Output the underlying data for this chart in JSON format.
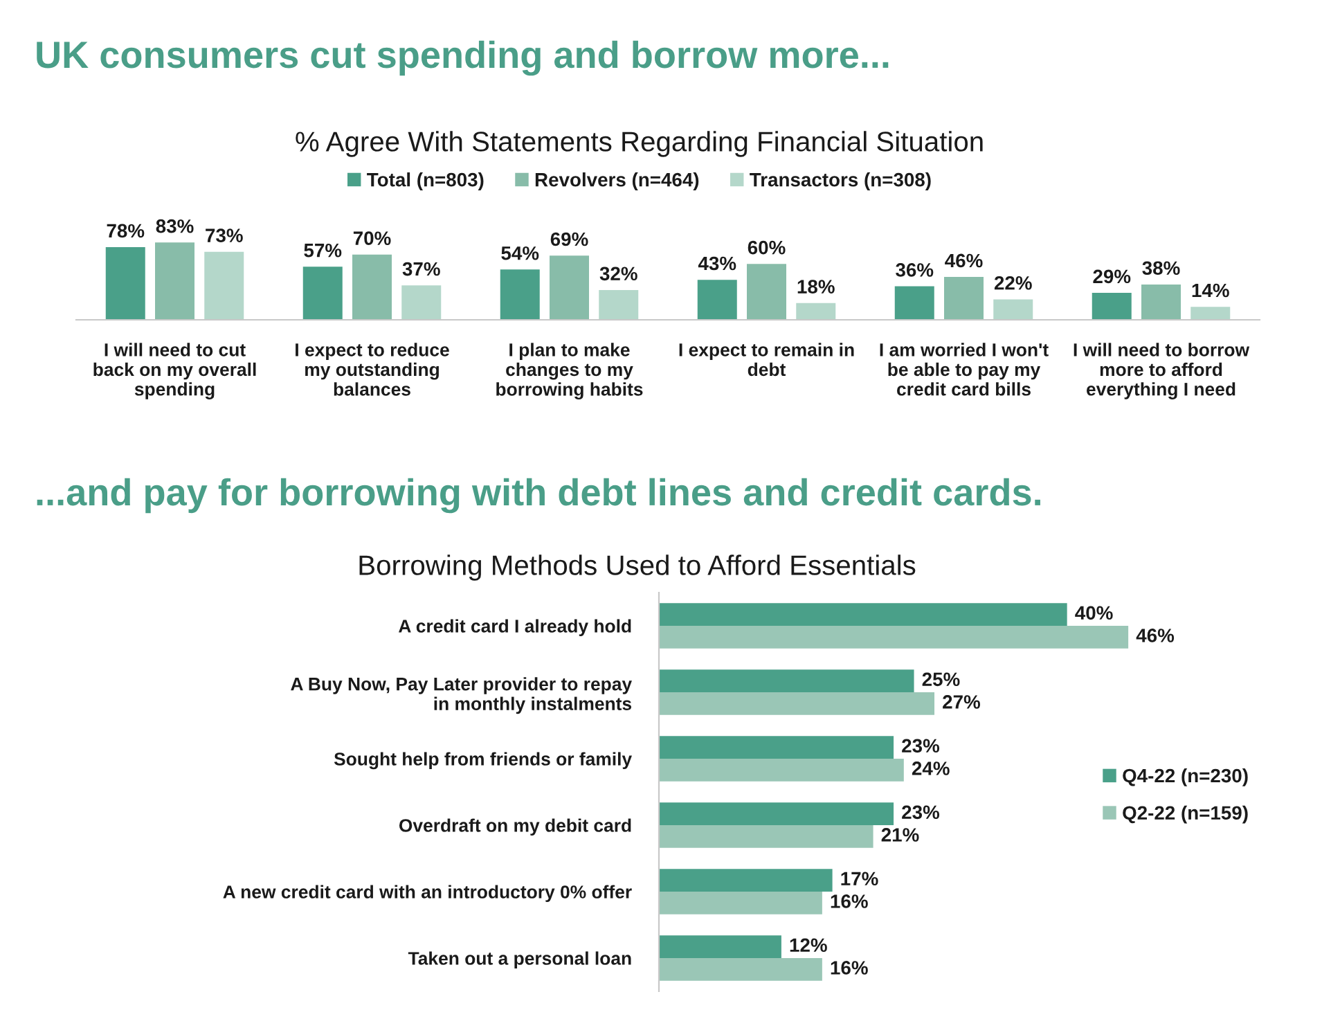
{
  "chart_data": [
    {
      "type": "bar",
      "title": "UK consumers cut spending and borrow more...",
      "subtitle": "% Agree With Statements Regarding Financial Situation",
      "categories": [
        "I will need to cut\nback on my overall\nspending",
        "I expect to reduce\nmy outstanding\nbalances",
        "I plan to make\nchanges to my\nborrowing habits",
        "I expect to remain in\ndebt",
        "I am worried I won't\nbe able to pay my\ncredit card bills",
        "I will need to borrow\nmore to afford\neverything I need"
      ],
      "series": [
        {
          "name": "Total (n=803)",
          "color": "#4aa089",
          "values": [
            78,
            57,
            54,
            43,
            36,
            29
          ],
          "value_labels": [
            "78%",
            "57%",
            "54%",
            "43%",
            "36%",
            "29%"
          ]
        },
        {
          "name": "Revolvers (n=464)",
          "color": "#88bca9",
          "values": [
            83,
            70,
            69,
            60,
            46,
            38
          ],
          "value_labels": [
            "83%",
            "70%",
            "69%",
            "60%",
            "46%",
            "38%"
          ]
        },
        {
          "name": "Transactors (n=308)",
          "color": "#b4d7ca",
          "values": [
            73,
            37,
            32,
            18,
            22,
            14
          ],
          "value_labels": [
            "73%",
            "37%",
            "32%",
            "18%",
            "22%",
            "14%"
          ]
        }
      ],
      "legend": "top",
      "grid": false,
      "tick_labels": "x"
    },
    {
      "type": "bar",
      "orientation": "horizontal",
      "title": "...and pay for borrowing with debt lines and credit cards.",
      "subtitle": "Borrowing Methods Used to Afford Essentials",
      "categories": [
        "A credit card I already hold",
        "A Buy Now, Pay Later provider to repay\nin monthly instalments",
        "Sought help from friends or family",
        "Overdraft on my debit card",
        "A new credit card with an introductory 0% offer",
        "Taken out a personal loan"
      ],
      "series": [
        {
          "name": "Q4-22 (n=230)",
          "color": "#4aa089",
          "values": [
            40,
            25,
            23,
            23,
            17,
            12
          ],
          "value_labels": [
            "40%",
            "25%",
            "23%",
            "23%",
            "17%",
            "12%"
          ]
        },
        {
          "name": "Q2-22 (n=159)",
          "color": "#9ac6b6",
          "values": [
            46,
            27,
            24,
            21,
            16,
            16
          ],
          "value_labels": [
            "46%",
            "27%",
            "24%",
            "21%",
            "16%",
            "16%"
          ]
        }
      ],
      "legend": "right",
      "grid": false,
      "tick_labels": "y"
    }
  ]
}
